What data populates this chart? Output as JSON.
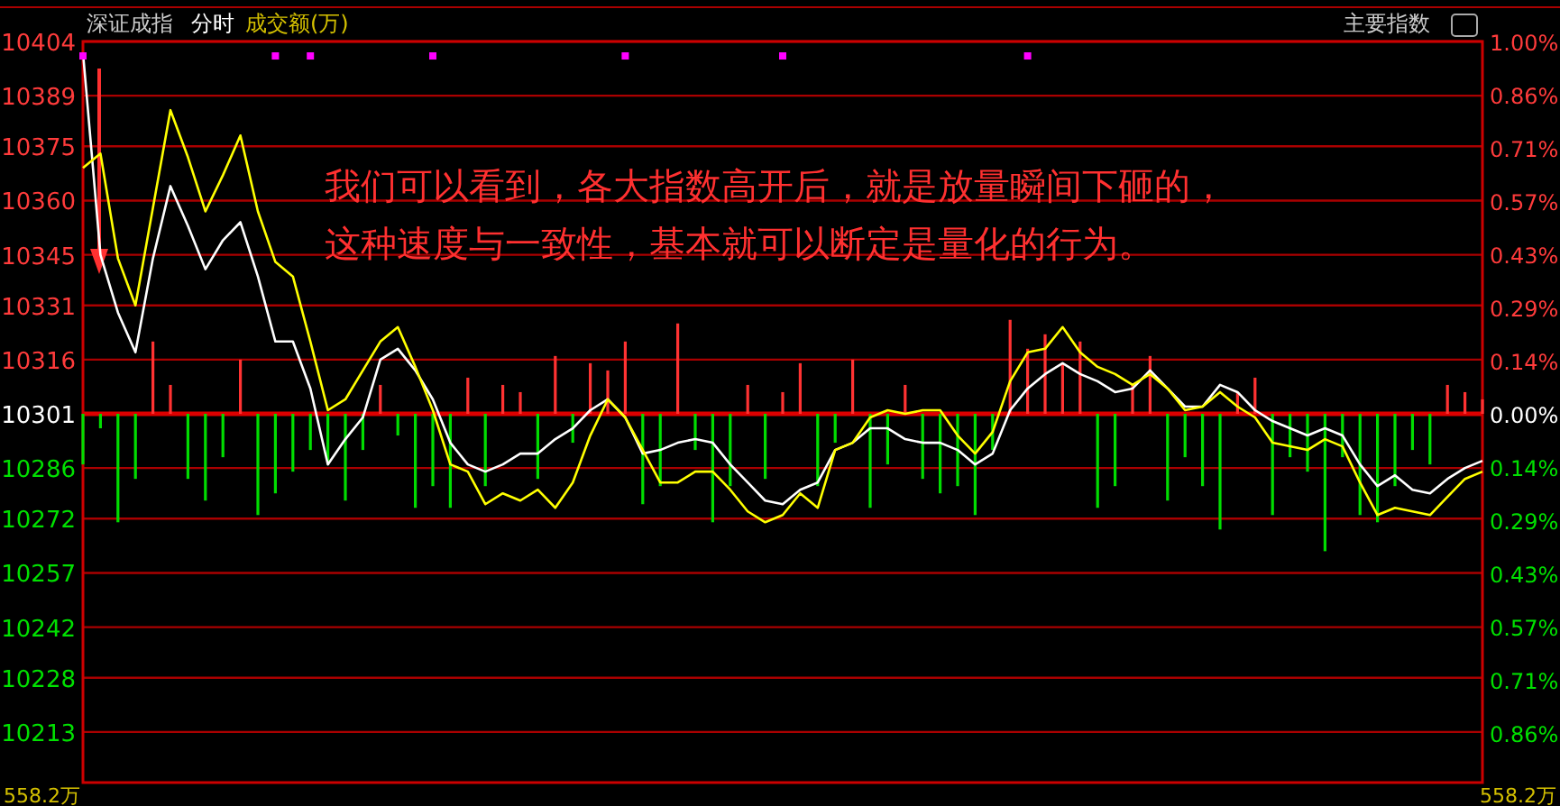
{
  "chart_data": {
    "type": "line",
    "title": "深证成指",
    "subtitle": "分时",
    "annotations": [
      "我们可以看到，各大指数高开后，就是放量瞬间下砸的，",
      "这种速度与一致性，基本就可以断定是量化的行为。",
      "成交额(万)",
      "主要指数",
      "558.2万",
      "558.2万"
    ],
    "categories": [
      null,
      null,
      null,
      null,
      null,
      null,
      null,
      null,
      null,
      null,
      null,
      null,
      null,
      null,
      null,
      null,
      null,
      null,
      null,
      null,
      null,
      null,
      null,
      null,
      null,
      null,
      null,
      null,
      null,
      null,
      null,
      null,
      null,
      null,
      null,
      null,
      null,
      null,
      null,
      null,
      null,
      null,
      null,
      null,
      null,
      null,
      null,
      null,
      null,
      null,
      null,
      null,
      null,
      null,
      null,
      null,
      null,
      null,
      null,
      null,
      null,
      null,
      null,
      null,
      null,
      null,
      null,
      null,
      null,
      null,
      null,
      null,
      null,
      null,
      null,
      null,
      null,
      null,
      null,
      null,
      null
    ],
    "series": [
      {
        "type": "bar",
        "base": [
          10301,
          10301,
          10301,
          10301,
          10301,
          10301,
          10301,
          10301,
          10301,
          10301,
          10301,
          10301,
          10301,
          10301,
          10301,
          10301,
          10301,
          10301,
          10301,
          10301,
          10301,
          10301,
          10301,
          10301,
          10301,
          10301,
          10301,
          10301,
          10301,
          10301,
          10301,
          10301,
          10301,
          10301,
          10301,
          10301,
          10301,
          10301,
          10301,
          10301,
          10301,
          10301,
          10301,
          10301,
          10301,
          10301,
          10301,
          10301,
          10301,
          10301,
          10301,
          10301,
          10301,
          10301,
          10301,
          10301,
          10301,
          10301,
          10301,
          10301,
          10301,
          10301,
          10301,
          10301,
          10301,
          10301,
          10301,
          10301,
          10301,
          10301,
          10301,
          10301,
          10301,
          10301,
          10301,
          10301,
          10301,
          10301,
          10301,
          10301,
          10301
        ],
        "values": [
          -14,
          -4,
          -30,
          -18,
          20,
          8,
          -18,
          -24,
          -12,
          15,
          -28,
          -22,
          -16,
          -10,
          -14,
          -24,
          -10,
          8,
          -6,
          -26,
          -20,
          -26,
          10,
          -20,
          8,
          6,
          -18,
          16,
          -8,
          14,
          12,
          20,
          -25,
          -20,
          25,
          -10,
          -30,
          -20,
          8,
          -18,
          6,
          14,
          -20,
          -8,
          15,
          -26,
          -14,
          8,
          -18,
          -22,
          -20,
          -28,
          -10,
          26,
          18,
          22,
          14,
          20,
          -26,
          -20,
          8,
          16,
          -24,
          -12,
          -20,
          -32,
          6,
          10,
          -28,
          -12,
          -16,
          -38,
          -12,
          -28,
          -30,
          -20,
          -10,
          -14,
          8,
          6,
          4
        ],
        "colors": [
          "#00dd00",
          "#00dd00",
          "#00dd00",
          "#00dd00",
          "#ff3232",
          "#ff3232",
          "#00dd00",
          "#00dd00",
          "#00dd00",
          "#ff3232",
          "#00dd00",
          "#00dd00",
          "#00dd00",
          "#00dd00",
          "#00dd00",
          "#00dd00",
          "#00dd00",
          "#ff3232",
          "#00dd00",
          "#00dd00",
          "#00dd00",
          "#00dd00",
          "#ff3232",
          "#00dd00",
          "#ff3232",
          "#ff3232",
          "#00dd00",
          "#ff3232",
          "#00dd00",
          "#ff3232",
          "#ff3232",
          "#ff3232",
          "#00dd00",
          "#00dd00",
          "#ff3232",
          "#00dd00",
          "#00dd00",
          "#00dd00",
          "#ff3232",
          "#00dd00",
          "#ff3232",
          "#ff3232",
          "#00dd00",
          "#00dd00",
          "#ff3232",
          "#00dd00",
          "#00dd00",
          "#ff3232",
          "#00dd00",
          "#00dd00",
          "#00dd00",
          "#00dd00",
          "#00dd00",
          "#ff3232",
          "#ff3232",
          "#ff3232",
          "#ff3232",
          "#ff3232",
          "#00dd00",
          "#00dd00",
          "#ff3232",
          "#ff3232",
          "#00dd00",
          "#00dd00",
          "#00dd00",
          "#00dd00",
          "#ff3232",
          "#ff3232",
          "#00dd00",
          "#00dd00",
          "#00dd00",
          "#00dd00",
          "#00dd00",
          "#00dd00",
          "#00dd00",
          "#00dd00",
          "#00dd00",
          "#00dd00",
          "#ff3232",
          "#ff3232",
          "#ff3232"
        ]
      },
      {
        "color": "#ffffff",
        "values": [
          10401,
          10345,
          10329,
          10318,
          10344,
          10364,
          10353,
          10341,
          10349,
          10354,
          10339,
          10321,
          10321,
          10308,
          10287,
          10294,
          10300,
          10316,
          10319,
          10313,
          10305,
          10293,
          10287,
          10285,
          10287,
          10290,
          10290,
          10294,
          10297,
          10302,
          10305,
          10300,
          10290,
          10291,
          10293,
          10294,
          10293,
          10287,
          10282,
          10277,
          10276,
          10280,
          10282,
          10291,
          10293,
          10297,
          10297,
          10294,
          10293,
          10293,
          10291,
          10287,
          10290,
          10302,
          10308,
          10312,
          10315,
          10312,
          10310,
          10307,
          10308,
          10313,
          10308,
          10303,
          10303,
          10309,
          10307,
          10302,
          10299,
          10297,
          10295,
          10297,
          10295,
          10287,
          10281,
          10284,
          10280,
          10279,
          10283,
          10286,
          10288
        ]
      },
      {
        "color": "#ffff00",
        "values": [
          10369,
          10373,
          10344,
          10331,
          10358,
          10385,
          10372,
          10357,
          10367,
          10378,
          10357,
          10343,
          10339,
          10321,
          10302,
          10305,
          10313,
          10321,
          10325,
          10314,
          10302,
          10287,
          10285,
          10276,
          10279,
          10277,
          10280,
          10275,
          10282,
          10295,
          10305,
          10300,
          10291,
          10282,
          10282,
          10285,
          10285,
          10280,
          10274,
          10271,
          10273,
          10279,
          10275,
          10291,
          10293,
          10300,
          10302,
          10301,
          10302,
          10302,
          10295,
          10290,
          10296,
          10310,
          10318,
          10319,
          10325,
          10318,
          10314,
          10312,
          10309,
          10312,
          10308,
          10302,
          10303,
          10307,
          10303,
          10300,
          10293,
          10292,
          10291,
          10294,
          10292,
          10282,
          10273,
          10275,
          10274,
          10273,
          10278,
          10283,
          10285
        ]
      },
      {
        "type": "scatter",
        "color": "#ff00ff",
        "marker": "square",
        "values": [
          10400,
          null,
          null,
          null,
          null,
          null,
          null,
          null,
          null,
          null,
          null,
          10400,
          null,
          10400,
          null,
          null,
          null,
          null,
          null,
          null,
          10400,
          null,
          null,
          null,
          null,
          null,
          null,
          null,
          null,
          null,
          null,
          10400,
          null,
          null,
          null,
          null,
          null,
          null,
          null,
          null,
          10400,
          null,
          null,
          null,
          null,
          null,
          null,
          null,
          null,
          null,
          null,
          null,
          null,
          null,
          10400,
          null,
          null,
          null,
          null,
          null,
          null,
          null,
          null,
          null,
          null,
          null,
          null,
          null,
          null,
          null,
          null,
          null,
          null,
          null,
          null,
          null,
          null,
          null,
          null,
          null,
          null
        ]
      }
    ],
    "ylim": [
      10199,
      10404
    ],
    "yticks": [
      10404,
      10389,
      10375,
      10360,
      10345,
      10331,
      10316,
      10301,
      10286,
      10272,
      10257,
      10242,
      10228,
      10213
    ],
    "y2lim": [
      -0.99,
      1.0
    ],
    "y2ticks": [
      {
        "value": 1.0,
        "label": "1.00%"
      },
      {
        "value": 0.857,
        "label": "0.86%"
      },
      {
        "value": 0.714,
        "label": "0.71%"
      },
      {
        "value": 0.571,
        "label": "0.57%"
      },
      {
        "value": 0.429,
        "label": "0.43%"
      },
      {
        "value": 0.286,
        "label": "0.29%"
      },
      {
        "value": 0.143,
        "label": "0.14%"
      },
      {
        "value": 0.0,
        "label": "0.00%"
      },
      {
        "value": -0.143,
        "label": "0.14%"
      },
      {
        "value": -0.286,
        "label": "0.29%"
      },
      {
        "value": -0.429,
        "label": "0.43%"
      },
      {
        "value": -0.571,
        "label": "0.57%"
      },
      {
        "value": -0.714,
        "label": "0.71%"
      },
      {
        "value": -0.857,
        "label": "0.86%"
      }
    ],
    "ref_lines": [
      {
        "axis": "y",
        "value": 10301,
        "color": "#dd0000"
      }
    ],
    "grid": "y",
    "tick_labels": "y",
    "line_style": "solid"
  }
}
